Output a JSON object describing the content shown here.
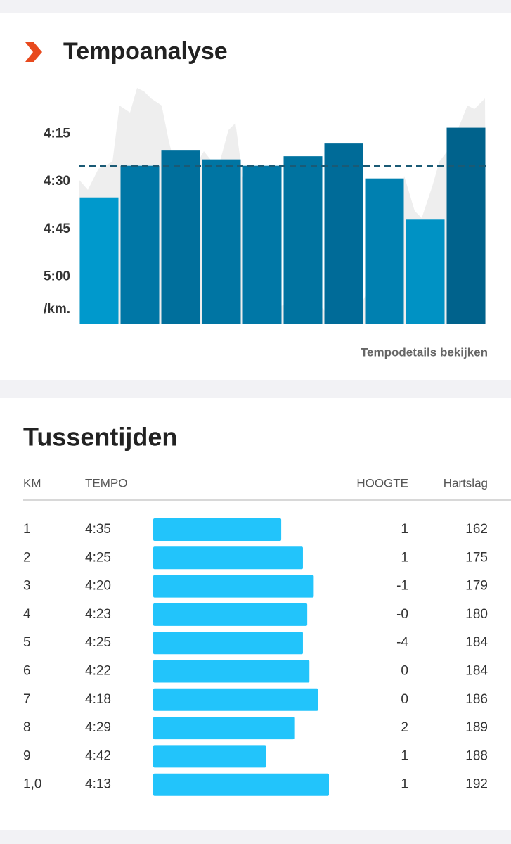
{
  "chart_data": {
    "type": "bar",
    "title": "Tempoanalyse",
    "y_unit": "/km.",
    "link": "Tempodetails bekijken",
    "categories": [
      null,
      null,
      null,
      null,
      null,
      null,
      null,
      null,
      null,
      null
    ],
    "values": [
      275,
      265,
      260,
      263,
      265,
      262,
      258,
      269,
      282,
      253
    ],
    "colors": [
      "#0099cc",
      "#0077a6",
      "#006f9c",
      "#0075a3",
      "#0077a6",
      "#0073a0",
      "#006b98",
      "#0080b0",
      "#0092c4",
      "#00628c"
    ],
    "mean_line": 265,
    "ylim": [
      315,
      240
    ],
    "yticks": [
      {
        "value": 255,
        "label": "4:15"
      },
      {
        "value": 270,
        "label": "4:30"
      },
      {
        "value": 285,
        "label": "4:45"
      },
      {
        "value": 300,
        "label": "5:00"
      }
    ]
  },
  "splits": {
    "title": "Tussentijden",
    "headers": [
      "KM",
      "TEMPO",
      "HOOGTE",
      "Hartslag"
    ],
    "tempo_range": [
      334,
      253
    ],
    "rows": [
      {
        "km": "1",
        "tempo": "4:35",
        "tempo_seconds": 275,
        "hoogte": "1",
        "hartslag": 162
      },
      {
        "km": "2",
        "tempo": "4:25",
        "tempo_seconds": 265,
        "hoogte": "1",
        "hartslag": 175
      },
      {
        "km": "3",
        "tempo": "4:20",
        "tempo_seconds": 260,
        "hoogte": "-1",
        "hartslag": 179
      },
      {
        "km": "4",
        "tempo": "4:23",
        "tempo_seconds": 263,
        "hoogte": "-0",
        "hartslag": 180
      },
      {
        "km": "5",
        "tempo": "4:25",
        "tempo_seconds": 265,
        "hoogte": "-4",
        "hartslag": 184
      },
      {
        "km": "6",
        "tempo": "4:22",
        "tempo_seconds": 262,
        "hoogte": "0",
        "hartslag": 184
      },
      {
        "km": "7",
        "tempo": "4:18",
        "tempo_seconds": 258,
        "hoogte": "0",
        "hartslag": 186
      },
      {
        "km": "8",
        "tempo": "4:29",
        "tempo_seconds": 269,
        "hoogte": "2",
        "hartslag": 189
      },
      {
        "km": "9",
        "tempo": "4:42",
        "tempo_seconds": 282,
        "hoogte": "1",
        "hartslag": 188
      },
      {
        "km": "1,0",
        "tempo": "4:13",
        "tempo_seconds": 253,
        "hoogte": "1",
        "hartslag": 192
      }
    ]
  }
}
